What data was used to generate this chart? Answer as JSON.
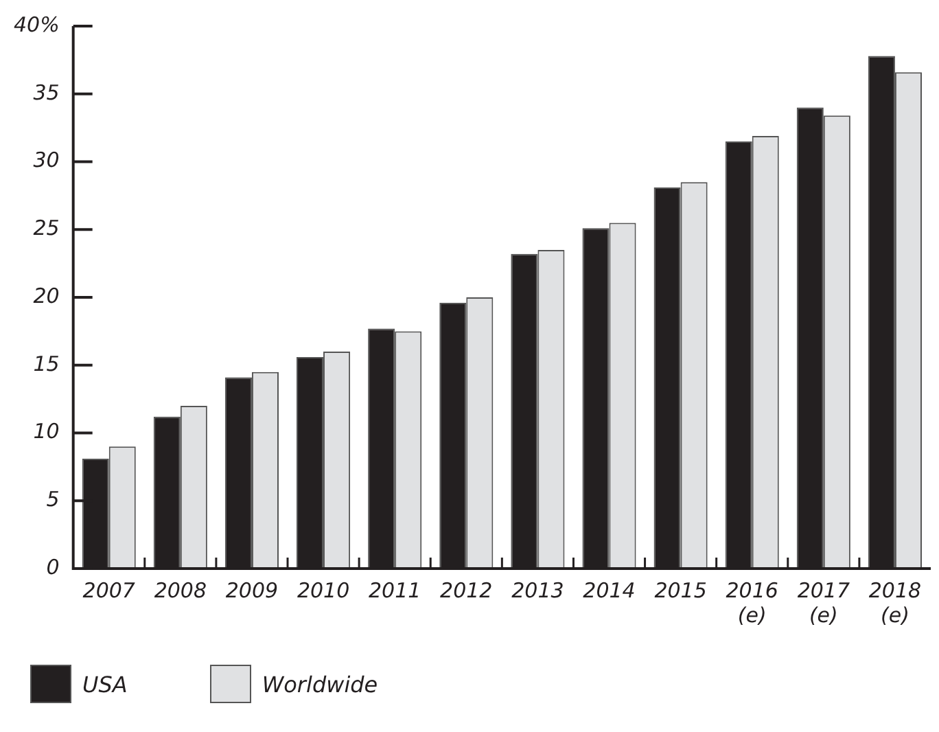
{
  "chart_data": {
    "type": "bar",
    "categories": [
      "2007",
      "2008",
      "2009",
      "2010",
      "2011",
      "2012",
      "2013",
      "2014",
      "2015",
      "2016\n(e)",
      "2017\n(e)",
      "2018\n(e)"
    ],
    "series": [
      {
        "name": "USA",
        "color": "#231f20",
        "values": [
          8.1,
          11.2,
          14.1,
          15.6,
          17.7,
          19.6,
          23.2,
          25.1,
          28.1,
          31.5,
          34.0,
          37.8
        ]
      },
      {
        "name": "Worldwide",
        "color": "#e0e1e3",
        "values": [
          9.0,
          12.0,
          14.5,
          16.0,
          17.5,
          20.0,
          23.5,
          25.5,
          28.5,
          31.9,
          33.4,
          36.6
        ]
      }
    ],
    "ylim": [
      0,
      40
    ],
    "yticks": [
      0,
      5,
      10,
      15,
      20,
      25,
      30,
      {
        "value": 40,
        "label": "40%"
      },
      35
    ],
    "grid": false,
    "legend": "bottom left"
  }
}
